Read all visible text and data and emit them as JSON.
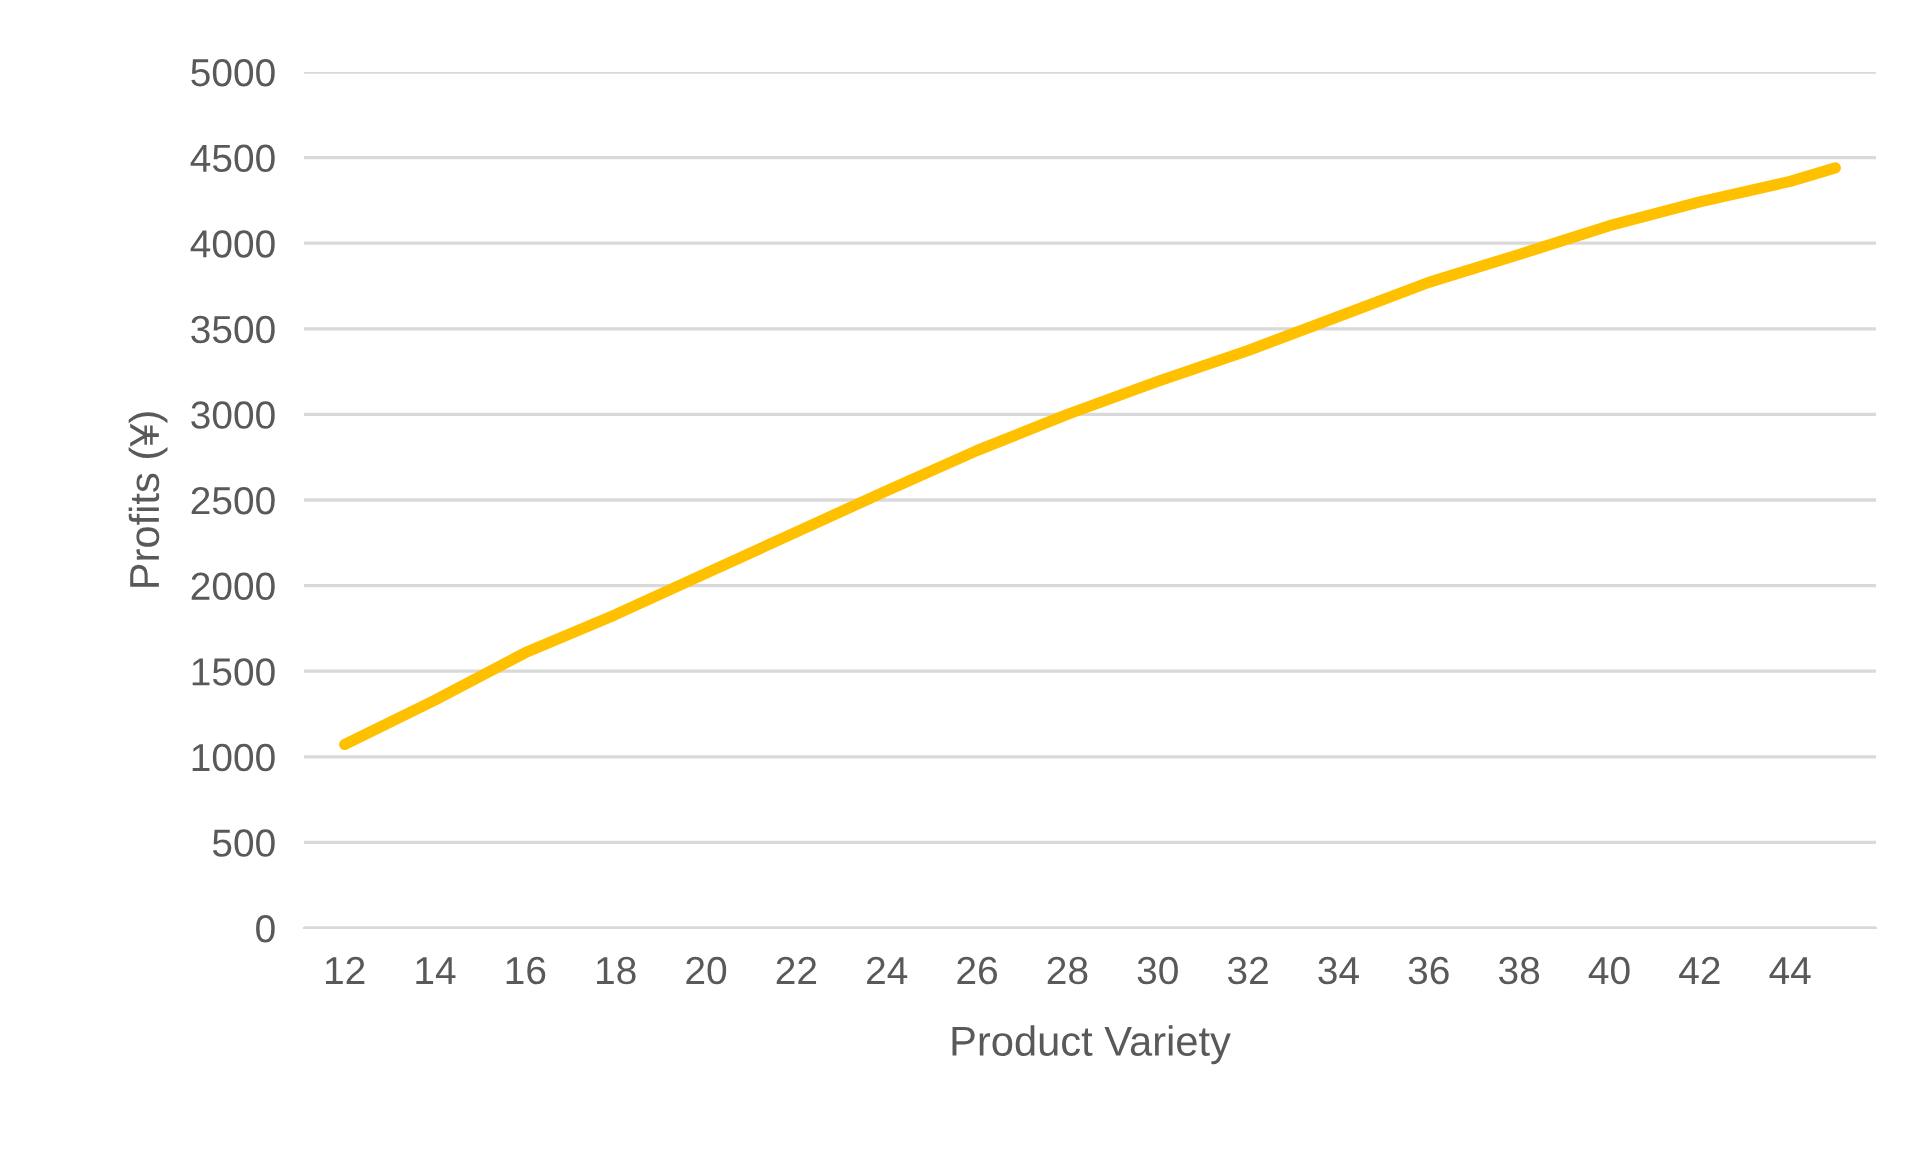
{
  "chart_data": {
    "type": "line",
    "xlabel": "Product Variety",
    "ylabel": "Profits (¥)",
    "series": [
      {
        "color": "#ffc000",
        "x": [
          12,
          14,
          16,
          18,
          20,
          22,
          24,
          26,
          28,
          30,
          32,
          34,
          36,
          38,
          40,
          42,
          44,
          45
        ],
        "values": [
          1072,
          1331,
          1608,
          1831,
          2072,
          2313,
          2554,
          2789,
          3000,
          3193,
          3373,
          3572,
          3771,
          3934,
          4102,
          4241,
          4361,
          4440
        ]
      }
    ],
    "xlim": [
      11.1,
      45.9
    ],
    "xticks": [
      12,
      14,
      16,
      18,
      20,
      22,
      24,
      26,
      28,
      30,
      32,
      34,
      36,
      38,
      40,
      42,
      44
    ],
    "ylim": [
      0,
      5000
    ],
    "yticks": [
      0,
      500,
      1000,
      1500,
      2000,
      2500,
      3000,
      3500,
      4000,
      4500,
      5000
    ],
    "grid": "y",
    "legend": false,
    "marker": "none",
    "line_style": "solid"
  }
}
